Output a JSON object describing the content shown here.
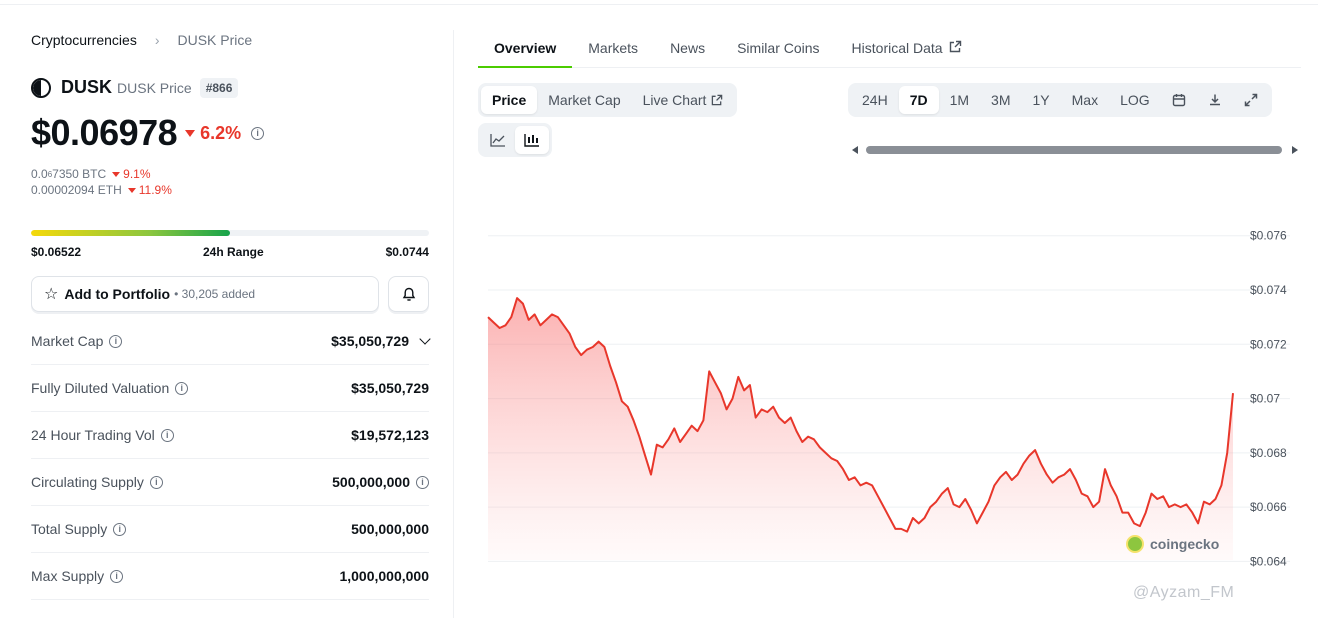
{
  "breadcrumb": {
    "root": "Cryptocurrencies",
    "current": "DUSK Price"
  },
  "coin": {
    "symbol": "DUSK",
    "subtitle": "DUSK Price",
    "rank": "#866"
  },
  "price": {
    "value": "$0.06978",
    "change": "6.2%"
  },
  "alt_prices": [
    {
      "prefix": "0.0",
      "sub": "6",
      "rest": "7350 BTC",
      "change": "9.1%"
    },
    {
      "prefix": "0.00002094 ETH",
      "sub": "",
      "rest": "",
      "change": "11.9%"
    }
  ],
  "range": {
    "low": "$0.06522",
    "label": "24h Range",
    "high": "$0.0744",
    "position": 0.5
  },
  "portfolio": {
    "label": "Add to Portfolio",
    "count": "• 30,205 added"
  },
  "stats": [
    {
      "label": "Market Cap",
      "value": "$35,050,729"
    },
    {
      "label": "Fully Diluted Valuation",
      "value": "$35,050,729"
    },
    {
      "label": "24 Hour Trading Vol",
      "value": "$19,572,123"
    },
    {
      "label": "Circulating Supply",
      "value": "500,000,000"
    },
    {
      "label": "Total Supply",
      "value": "500,000,000"
    },
    {
      "label": "Max Supply",
      "value": "1,000,000,000"
    }
  ],
  "tabs": [
    "Overview",
    "Markets",
    "News",
    "Similar Coins",
    "Historical Data"
  ],
  "chart_types": [
    "Price",
    "Market Cap",
    "Live Chart"
  ],
  "ranges": [
    "24H",
    "7D",
    "1M",
    "3M",
    "1Y",
    "Max",
    "LOG"
  ],
  "icons": [
    "line-chart-icon",
    "candlestick-icon",
    "calendar-icon",
    "download-icon",
    "expand-icon",
    "bell-icon",
    "star-icon",
    "external-link-icon"
  ],
  "colors": {
    "line": "#e8372b",
    "accent": "#4bcc00",
    "negative": "#e8372b"
  },
  "watermark": "coingecko",
  "overlay_watermark": "@Ayzam_FM",
  "chart_data": {
    "type": "area",
    "ylim": [
      0.0635,
      0.0775
    ],
    "y_ticks": [
      "$0.076",
      "$0.074",
      "$0.072",
      "$0.07",
      "$0.068",
      "$0.066",
      "$0.064"
    ],
    "y_tick_values": [
      0.076,
      0.074,
      0.072,
      0.07,
      0.068,
      0.066,
      0.064
    ],
    "values": [
      0.073,
      0.0728,
      0.0726,
      0.0727,
      0.073,
      0.0737,
      0.0735,
      0.0729,
      0.0731,
      0.0727,
      0.0729,
      0.0731,
      0.073,
      0.0727,
      0.0724,
      0.0719,
      0.0716,
      0.0718,
      0.0719,
      0.0721,
      0.0719,
      0.0712,
      0.0706,
      0.0699,
      0.0697,
      0.0692,
      0.0686,
      0.0679,
      0.0672,
      0.0683,
      0.0682,
      0.0685,
      0.0689,
      0.0684,
      0.0687,
      0.069,
      0.0688,
      0.0692,
      0.071,
      0.0706,
      0.0702,
      0.0696,
      0.07,
      0.0708,
      0.0703,
      0.0705,
      0.0693,
      0.0696,
      0.0695,
      0.0697,
      0.0693,
      0.0691,
      0.0693,
      0.0688,
      0.0684,
      0.0686,
      0.0685,
      0.0682,
      0.068,
      0.0678,
      0.0677,
      0.0674,
      0.067,
      0.0671,
      0.0668,
      0.0669,
      0.0668,
      0.0664,
      0.066,
      0.0656,
      0.0652,
      0.0652,
      0.0651,
      0.0656,
      0.0654,
      0.0656,
      0.066,
      0.0662,
      0.0665,
      0.0667,
      0.0661,
      0.066,
      0.0663,
      0.0659,
      0.0654,
      0.0658,
      0.0662,
      0.0668,
      0.0671,
      0.0673,
      0.067,
      0.0672,
      0.0676,
      0.0679,
      0.0681,
      0.0676,
      0.0672,
      0.0669,
      0.0671,
      0.0672,
      0.0674,
      0.067,
      0.0665,
      0.0664,
      0.066,
      0.0662,
      0.0674,
      0.0668,
      0.0664,
      0.0658,
      0.0658,
      0.0654,
      0.0653,
      0.0658,
      0.0665,
      0.0663,
      0.0664,
      0.066,
      0.0661,
      0.066,
      0.0661,
      0.0658,
      0.0654,
      0.0662,
      0.0661,
      0.0663,
      0.0668,
      0.068,
      0.0702
    ],
    "xlabel": "",
    "ylabel": ""
  }
}
